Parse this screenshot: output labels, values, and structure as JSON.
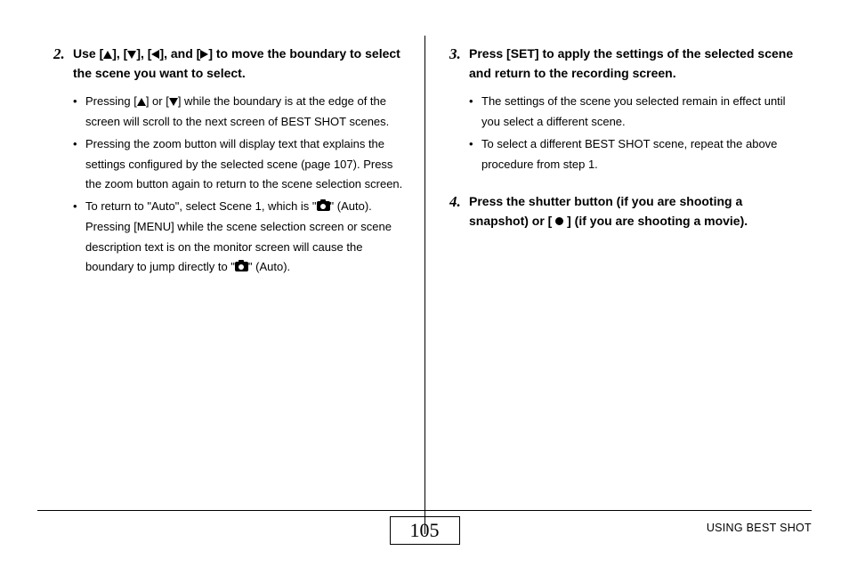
{
  "left": {
    "step2": {
      "num": "2.",
      "head_parts": [
        "Use [",
        "], [",
        "], [",
        "], and [",
        "] to move the boundary to select the scene you want to select."
      ],
      "bullets": {
        "b1_parts": [
          "Pressing [",
          "] or [",
          "] while the boundary is at the edge of the screen will scroll to the next screen of BEST SHOT scenes."
        ],
        "b2": "Pressing the zoom button will display text that explains the settings configured by the selected scene (page 107). Press the zoom button again to return to the scene selection screen.",
        "b3_parts": [
          "To return to \"Auto\", select Scene 1, which is \"",
          "\" (Auto). Pressing [MENU] while the scene selection screen or scene description text is on the monitor screen will cause the boundary to jump directly to \"",
          "\" (Auto)."
        ]
      }
    }
  },
  "right": {
    "step3": {
      "num": "3.",
      "head": "Press [SET] to apply the settings of the selected scene and return to the recording screen.",
      "bullets": {
        "b1": "The settings of the scene you selected remain in effect until you select a different scene.",
        "b2": "To select a different BEST SHOT scene, repeat the above procedure from step 1."
      }
    },
    "step4": {
      "num": "4.",
      "head_parts": [
        "Press the shutter button (if you are shooting a snapshot) or [ ",
        " ] (if you are shooting a movie)."
      ]
    }
  },
  "footer": {
    "page": "105",
    "section": "USING BEST SHOT"
  }
}
